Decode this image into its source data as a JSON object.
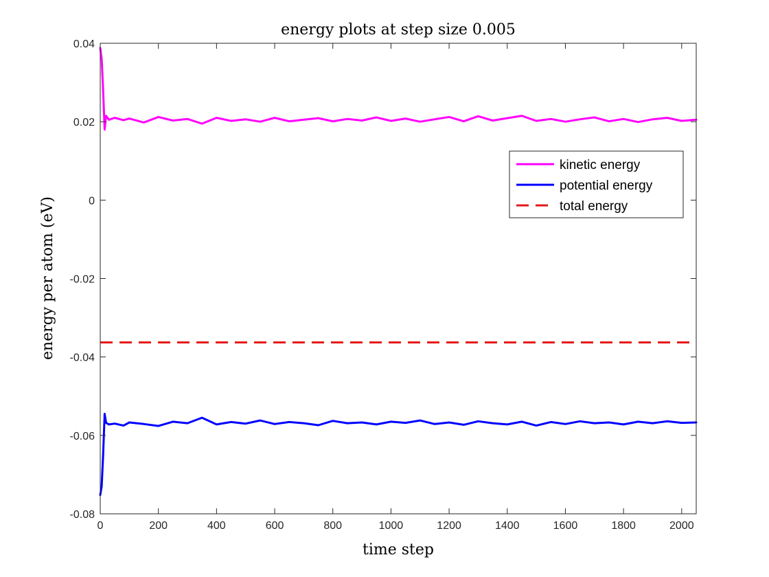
{
  "chart_data": {
    "type": "line",
    "title": "energy plots at step size 0.005",
    "xlabel": "time step",
    "ylabel": "energy per atom (eV)",
    "xlim": [
      0,
      2050
    ],
    "ylim": [
      -0.08,
      0.04
    ],
    "xticks": [
      "0",
      "200",
      "400",
      "600",
      "800",
      "1000",
      "1200",
      "1400",
      "1600",
      "1800",
      "2000"
    ],
    "yticks": [
      "-0.08",
      "-0.06",
      "-0.04",
      "-0.02",
      "0",
      "0.02",
      "0.04"
    ],
    "grid": false,
    "legend_position": "top-right",
    "series": [
      {
        "name": "kinetic energy",
        "color": "#ff00ff",
        "style": "solid",
        "x": [
          0,
          5,
          10,
          15,
          20,
          30,
          50,
          80,
          100,
          150,
          200,
          250,
          300,
          350,
          400,
          450,
          500,
          550,
          600,
          650,
          700,
          750,
          800,
          850,
          900,
          950,
          1000,
          1050,
          1100,
          1150,
          1200,
          1250,
          1300,
          1350,
          1400,
          1450,
          1500,
          1550,
          1600,
          1650,
          1700,
          1750,
          1800,
          1850,
          1900,
          1950,
          2000,
          2050
        ],
        "y": [
          0.0388,
          0.036,
          0.028,
          0.018,
          0.0215,
          0.0205,
          0.021,
          0.0204,
          0.0208,
          0.0198,
          0.0212,
          0.0203,
          0.0207,
          0.0195,
          0.021,
          0.0202,
          0.0206,
          0.02,
          0.021,
          0.0201,
          0.0205,
          0.0209,
          0.0201,
          0.0207,
          0.0203,
          0.0211,
          0.0202,
          0.0208,
          0.02,
          0.0206,
          0.0212,
          0.0201,
          0.0214,
          0.0203,
          0.0209,
          0.0215,
          0.0202,
          0.0207,
          0.02,
          0.0206,
          0.0211,
          0.0201,
          0.0207,
          0.0199,
          0.0206,
          0.021,
          0.0202,
          0.0205
        ]
      },
      {
        "name": "potential energy",
        "color": "#0000ff",
        "style": "solid",
        "x": [
          0,
          5,
          10,
          15,
          20,
          30,
          50,
          80,
          100,
          150,
          200,
          250,
          300,
          350,
          400,
          450,
          500,
          550,
          600,
          650,
          700,
          750,
          800,
          850,
          900,
          950,
          1000,
          1050,
          1100,
          1150,
          1200,
          1250,
          1300,
          1350,
          1400,
          1450,
          1500,
          1550,
          1600,
          1650,
          1700,
          1750,
          1800,
          1850,
          1900,
          1950,
          2000,
          2050
        ],
        "y": [
          -0.0752,
          -0.073,
          -0.065,
          -0.0545,
          -0.0568,
          -0.0572,
          -0.057,
          -0.0575,
          -0.0567,
          -0.0571,
          -0.0576,
          -0.0565,
          -0.0569,
          -0.0555,
          -0.0572,
          -0.0566,
          -0.057,
          -0.0562,
          -0.0571,
          -0.0566,
          -0.0569,
          -0.0574,
          -0.0563,
          -0.0569,
          -0.0567,
          -0.0572,
          -0.0565,
          -0.0568,
          -0.0562,
          -0.0571,
          -0.0567,
          -0.0573,
          -0.0564,
          -0.0569,
          -0.0572,
          -0.0565,
          -0.0575,
          -0.0566,
          -0.0571,
          -0.0564,
          -0.0569,
          -0.0567,
          -0.0572,
          -0.0565,
          -0.0569,
          -0.0564,
          -0.0568,
          -0.0567
        ]
      },
      {
        "name": "total energy",
        "color": "#e6191a",
        "style": "dashed",
        "x": [
          0,
          2050
        ],
        "y": [
          -0.0363,
          -0.0363
        ]
      }
    ]
  }
}
